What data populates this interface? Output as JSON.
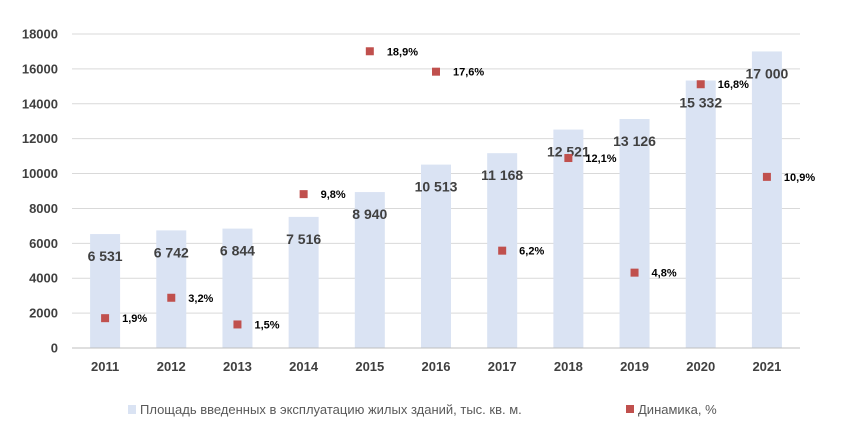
{
  "chart_data": {
    "type": "bar",
    "categories": [
      "2011",
      "2012",
      "2013",
      "2014",
      "2015",
      "2016",
      "2017",
      "2018",
      "2019",
      "2020",
      "2021"
    ],
    "series": [
      {
        "name": "Площадь введенных в эксплуатацию жилых зданий, тыс. кв. м.",
        "type": "bar",
        "axis": "left",
        "values": [
          6531,
          6742,
          6844,
          7516,
          8940,
          10513,
          11168,
          12521,
          13126,
          15332,
          17000
        ],
        "labels": [
          "6 531",
          "6 742",
          "6 844",
          "7 516",
          "8 940",
          "10 513",
          "11 168",
          "12 521",
          "13 126",
          "15 332",
          "17 000"
        ],
        "color": "#dae3f3"
      },
      {
        "name": "Динамика, %",
        "type": "scatter",
        "axis": "secondary",
        "values": [
          1.9,
          3.2,
          1.5,
          9.8,
          18.9,
          17.6,
          6.2,
          12.1,
          4.8,
          16.8,
          10.9
        ],
        "labels": [
          "1,9%",
          "3,2%",
          "1,5%",
          "9,8%",
          "18,9%",
          "17,6%",
          "6,2%",
          "12,1%",
          "4,8%",
          "16,8%",
          "10,9%"
        ],
        "color": "#c0504d"
      }
    ],
    "yticks": [
      "0",
      "2000",
      "4000",
      "6000",
      "8000",
      "10000",
      "12000",
      "14000",
      "16000",
      "18000"
    ],
    "ylim": [
      0,
      18000
    ],
    "secondary_ylim": [
      0,
      20
    ],
    "grid": true,
    "legend": "bottom",
    "title": "",
    "xlabel": "",
    "ylabel": ""
  },
  "legend": {
    "bar_label": "Площадь введенных в эксплуатацию жилых зданий, тыс. кв. м.",
    "marker_label": "Динамика, %"
  }
}
